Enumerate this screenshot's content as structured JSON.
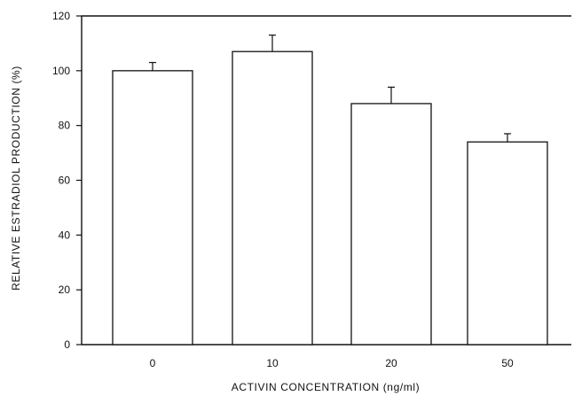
{
  "chart_data": {
    "type": "bar",
    "title": "",
    "xlabel": "ACTIVIN CONCENTRATION (ng/ml)",
    "ylabel": "RELATIVE ESTRADIOL PRODUCTION (%)",
    "categories": [
      "0",
      "10",
      "20",
      "50"
    ],
    "values": [
      100,
      107,
      88,
      74
    ],
    "errors": [
      3,
      6,
      6,
      3
    ],
    "ylim": [
      0,
      120
    ],
    "yticks": [
      0,
      20,
      40,
      60,
      80,
      100,
      120
    ],
    "grid": false,
    "legend": "none",
    "colors": {
      "bar_fill": "#ffffff",
      "stroke": "#111111"
    }
  }
}
